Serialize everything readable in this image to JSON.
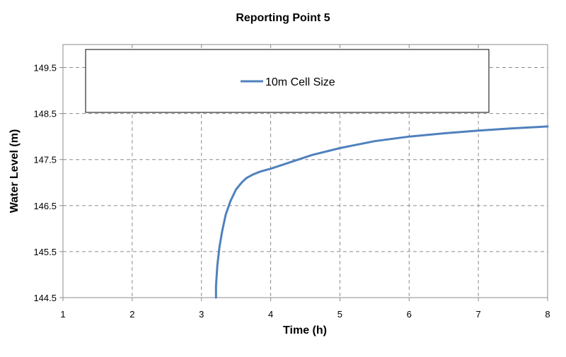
{
  "chart_data": {
    "type": "line",
    "title": "Reporting Point 5",
    "xlabel": "Time (h)",
    "ylabel": "Water Level (m)",
    "xlim": [
      1,
      8
    ],
    "ylim": [
      144.5,
      150.0
    ],
    "xticks": [
      1,
      2,
      3,
      4,
      5,
      6,
      7,
      8
    ],
    "yticks": [
      144.5,
      145.5,
      146.5,
      147.5,
      148.5,
      149.5
    ],
    "grid": true,
    "legend_position": "top",
    "series": [
      {
        "name": "10m Cell Size",
        "color": "#4f81bd",
        "x": [
          3.21,
          3.21,
          3.23,
          3.26,
          3.3,
          3.35,
          3.42,
          3.5,
          3.58,
          3.65,
          3.75,
          3.85,
          4.0,
          4.2,
          4.4,
          4.6,
          5.0,
          5.5,
          6.0,
          6.5,
          7.0,
          7.5,
          8.0
        ],
        "y": [
          144.5,
          144.75,
          145.2,
          145.6,
          145.95,
          146.3,
          146.6,
          146.85,
          147.0,
          147.1,
          147.18,
          147.24,
          147.3,
          147.4,
          147.5,
          147.6,
          147.75,
          147.9,
          148.0,
          148.07,
          148.13,
          148.18,
          148.22
        ]
      }
    ]
  }
}
